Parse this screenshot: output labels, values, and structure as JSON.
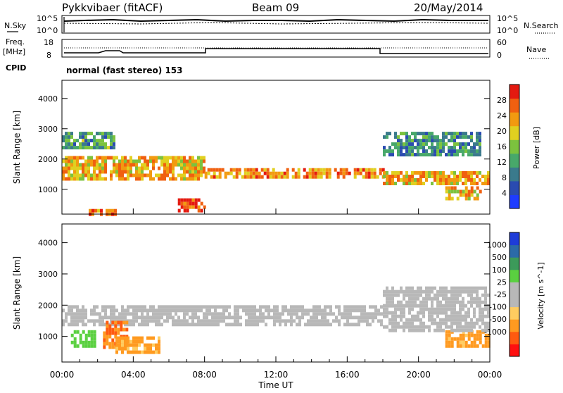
{
  "header": {
    "station": "Pykkvibaer (fitACF)",
    "beam": "Beam 09",
    "date": "20/May/2014"
  },
  "panels": {
    "nsky_label": "N.Sky",
    "nsky_ticks": [
      "10^5",
      "10^0"
    ],
    "nsearch_label": "N.Search",
    "nsearch_ticks": [
      "10^5",
      "10^0"
    ],
    "freq_label": "Freq.",
    "freq_unit": "[MHz]",
    "freq_ticks": [
      "18",
      "8"
    ],
    "nave_label": "Nave",
    "nave_ticks": [
      "60",
      "0"
    ],
    "cpid_label": "CPID",
    "cpid_text": "normal (fast stereo) 153"
  },
  "colors": {
    "power": [
      "#1e3cff",
      "#2a4bb0",
      "#3a7a8c",
      "#48a86a",
      "#7cc23e",
      "#e0d020",
      "#f29a10",
      "#f06010",
      "#e41a10"
    ],
    "velocity": [
      "#ff1010",
      "#ff5a10",
      "#ff9a20",
      "#ffcc60",
      "#b8b8b8",
      "#b8b8b8",
      "#5ad040",
      "#3c9a5a",
      "#2b6aa8",
      "#1e3cd8"
    ]
  },
  "chart_data": [
    {
      "type": "heatmap",
      "quantity": "Power",
      "ylabel": "Slant Range [km]",
      "yticks": [
        1000,
        2000,
        3000,
        4000
      ],
      "ylim": [
        180,
        4600
      ],
      "xlim": [
        0,
        24
      ],
      "colorbar_label": "Power [dB]",
      "colorbar_ticks": [
        4,
        8,
        12,
        16,
        20,
        24,
        28
      ],
      "colorbar_range": [
        0,
        32
      ],
      "bands": [
        {
          "t0": 0.0,
          "t1": 8.0,
          "r0": 1400,
          "r1": 2100,
          "level": 22
        },
        {
          "t0": 8.0,
          "t1": 18.0,
          "r0": 1450,
          "r1": 1700,
          "level": 24
        },
        {
          "t0": 18.0,
          "t1": 24.0,
          "r0": 1250,
          "r1": 1600,
          "level": 22
        },
        {
          "t0": 0.0,
          "t1": 3.0,
          "r0": 2400,
          "r1": 2900,
          "level": 12
        },
        {
          "t0": 18.0,
          "t1": 23.5,
          "r0": 2200,
          "r1": 2900,
          "level": 10
        },
        {
          "t0": 6.5,
          "t1": 8.0,
          "r0": 250,
          "r1": 700,
          "level": 28
        },
        {
          "t0": 1.5,
          "t1": 3.0,
          "r0": 200,
          "r1": 350,
          "level": 26
        },
        {
          "t0": 21.5,
          "t1": 23.5,
          "r0": 700,
          "r1": 1100,
          "level": 22
        }
      ]
    },
    {
      "type": "heatmap",
      "quantity": "Velocity",
      "ylabel": "Slant Range [km]",
      "yticks": [
        1000,
        2000,
        3000,
        4000
      ],
      "ylim": [
        180,
        4600
      ],
      "xlim": [
        0,
        24
      ],
      "xlabel": "Time UT",
      "xticks": [
        "00:00",
        "04:00",
        "08:00",
        "12:00",
        "16:00",
        "20:00",
        "00:00"
      ],
      "colorbar_label": "Velocity [m s^-1]",
      "colorbar_ticks": [
        "1000",
        "500",
        "100",
        "25",
        "-25",
        "-100",
        "-500",
        "-1000"
      ],
      "bands": [
        {
          "t0": 0.0,
          "t1": 18.0,
          "r0": 1400,
          "r1": 2000,
          "value": 0
        },
        {
          "t0": 0.5,
          "t1": 1.8,
          "r0": 700,
          "r1": 1200,
          "value": 300
        },
        {
          "t0": 2.3,
          "t1": 3.6,
          "r0": 700,
          "r1": 1500,
          "value": -500
        },
        {
          "t0": 3.0,
          "t1": 5.5,
          "r0": 500,
          "r1": 1000,
          "value": -150
        },
        {
          "t0": 21.5,
          "t1": 24.0,
          "r0": 700,
          "r1": 1200,
          "value": -200
        },
        {
          "t0": 18.0,
          "t1": 24.0,
          "r0": 1200,
          "r1": 2600,
          "value": 0
        }
      ]
    }
  ]
}
